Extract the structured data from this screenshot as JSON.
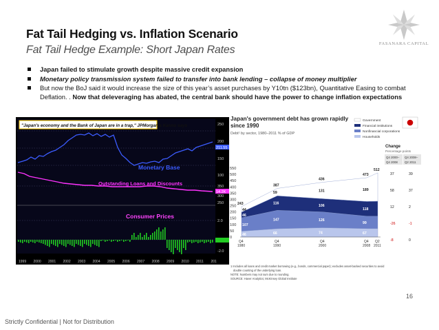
{
  "slide": {
    "title": "Fat Tail Hedging vs. Inflation Scenario",
    "subtitle": "Fat Tail Hedge Example: Short Japan Rates",
    "logo_text": "FASANARA CAPITAL",
    "footer": "Strictly Confidential | Not for Distribution",
    "page_number": "16"
  },
  "bullets": [
    {
      "text": "Japan failed to stimulate growth despite massive credit expansion"
    },
    {
      "text": "Monetary policy transmission system failed to transfer into bank lending – collapse of money multiplier"
    },
    {
      "text": "But now the BoJ said it would increase the size of this year’s asset purchases by Y10tn ($123bn), Quantitative Easing to combat Deflation. . ",
      "bold": "Now that deleveraging has abated, the central bank should have the power to change inflation expectations"
    }
  ],
  "left_chart": {
    "quote": "\"Japan's economy and the Bank of Japan are in a trap,\" JPMorgan's Kanno says",
    "monetary_base_label": "Monetary Base",
    "loans_label": "Outstanding Loans and Discounts",
    "consumer_prices_label": "Consumer Prices",
    "mb_value_label": "211.55",
    "loans_value_label": "14.2K",
    "top_axis": [
      "250",
      "200",
      "150",
      "100"
    ],
    "mid_axis": [
      "350",
      "300",
      "250"
    ],
    "cp_axis": [
      "2.0",
      "0.0",
      "-2.0"
    ],
    "years": [
      "1999",
      "2000",
      "2001",
      "2002",
      "2003",
      "2004",
      "2005",
      "2006",
      "2007",
      "2008",
      "2009",
      "2010",
      "2011",
      "201"
    ],
    "colors": {
      "monetary_base": "#3c5cff",
      "loans": "#ff33ff",
      "cpi": "#22cc22",
      "background": "#000000"
    }
  },
  "right_chart": {
    "title": "Japan's government debt has grown rapidly since 1990",
    "subtitle": "Debt¹ by sector, 1980–2011 % of GDP",
    "legend": [
      "Government",
      "Financial institutions",
      "Nonfinancial corporations",
      "Households"
    ],
    "change_title": "Change",
    "change_subtitle": "Percentage points",
    "change_col1": "Q4 2000– Q4 2008",
    "change_col2": "Q4 2008– Q2 2011",
    "change_values": [
      [
        "37",
        "39"
      ],
      [
        "58",
        "37"
      ],
      [
        "12",
        "2"
      ],
      [
        "-26",
        "-1"
      ],
      [
        "-8",
        "0"
      ]
    ],
    "y_axis": [
      "550",
      "500",
      "450",
      "400",
      "350",
      "300",
      "250",
      "200",
      "150",
      "100",
      "50",
      "0"
    ],
    "x_axis": [
      "Q4 1980",
      "Q4 1990",
      "Q4 2000",
      "Q4 2008",
      "Q2 2011"
    ],
    "note": "1 Includes all loans and credit market borrowing (e.g., bonds, commercial paper); excludes asset-backed securities to avoid double counting of the underlying loan.",
    "note2": "NOTE: Numbers may not sum due to rounding.",
    "source": "SOURCE: Haver Analytics; McKinsey Global Institute",
    "chart_data": {
      "type": "area",
      "title": "Japan's government debt has grown rapidly since 1990",
      "ylabel": "% of GDP",
      "ylim": [
        0,
        550
      ],
      "x": [
        "Q4 1980",
        "Q4 1990",
        "Q4 2000",
        "Q4 2008",
        "Q2 2011"
      ],
      "totals": [
        243,
        387,
        436,
        473,
        512
      ],
      "series": [
        {
          "name": "Households",
          "values": [
            46,
            66,
            74,
            67,
            67
          ]
        },
        {
          "name": "Nonfinancial corporations",
          "values": [
            107,
            147,
            126,
            99,
            99
          ]
        },
        {
          "name": "Financial institutions",
          "values": [
            46,
            116,
            106,
            118,
            120
          ]
        },
        {
          "name": "Government",
          "values": [
            44,
            59,
            131,
            189,
            226
          ]
        }
      ]
    }
  }
}
